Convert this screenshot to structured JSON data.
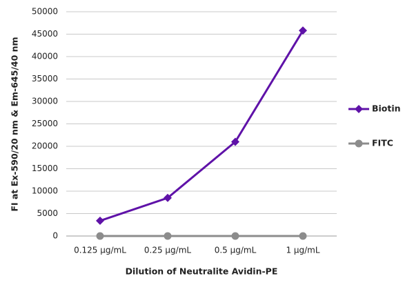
{
  "chart_data": {
    "type": "line",
    "x_label": "Dilution of Neutralite Avidin-PE",
    "y_label": "FI at Ex-590/20 nm & Em-645/40 nm",
    "categories": [
      "0.125 µg/mL",
      "0.25 µg/mL",
      "0.5 µg/mL",
      "1 µg/mL"
    ],
    "series": [
      {
        "name": "Biotin",
        "color": "#5f12a8",
        "marker": "diamond",
        "values": [
          3400,
          8500,
          21000,
          45800
        ]
      },
      {
        "name": "FITC",
        "color": "#8c8c8c",
        "marker": "circle",
        "values": [
          0,
          0,
          0,
          0
        ]
      }
    ],
    "ylim": [
      0,
      50000
    ],
    "yticks": [
      0,
      5000,
      10000,
      15000,
      20000,
      25000,
      30000,
      35000,
      40000,
      45000,
      50000
    ],
    "grid": true,
    "legend": "right"
  }
}
